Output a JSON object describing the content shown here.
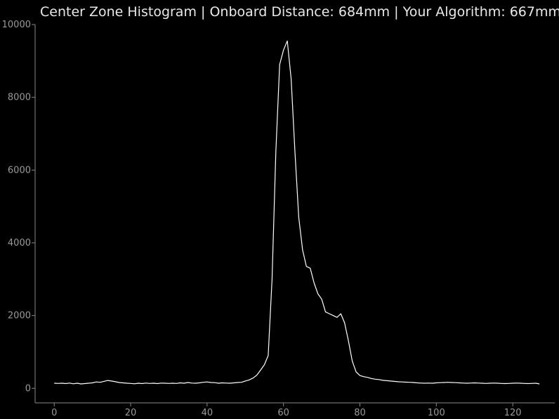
{
  "chart_data": {
    "type": "line",
    "title": "Center Zone Histogram | Onboard Distance: 684mm | Your Algorithm: 667mm",
    "xlabel": "",
    "ylabel": "",
    "xlim": [
      -5,
      131
    ],
    "ylim": [
      -400,
      10000
    ],
    "xticks": [
      0,
      20,
      40,
      60,
      80,
      100,
      120
    ],
    "yticks": [
      0,
      2000,
      4000,
      6000,
      8000,
      10000
    ],
    "grid": false,
    "line_color": "#ffffff",
    "background": "#000000",
    "axis_color": "#8a8a8a",
    "series": [
      {
        "x": [
          0,
          1,
          2,
          3,
          4,
          5,
          6,
          7,
          8,
          9,
          10,
          11,
          12,
          13,
          14,
          15,
          16,
          17,
          18,
          19,
          20,
          21,
          22,
          23,
          24,
          25,
          26,
          27,
          28,
          29,
          30,
          31,
          32,
          33,
          34,
          35,
          36,
          37,
          38,
          39,
          40,
          41,
          42,
          43,
          44,
          45,
          46,
          47,
          48,
          49,
          50,
          51,
          52,
          53,
          54,
          55,
          56,
          57,
          58,
          59,
          60,
          61,
          62,
          63,
          64,
          65,
          66,
          67,
          68,
          69,
          70,
          71,
          72,
          73,
          74,
          75,
          76,
          77,
          78,
          79,
          80,
          81,
          82,
          83,
          84,
          85,
          86,
          87,
          88,
          89,
          90,
          91,
          92,
          93,
          94,
          95,
          96,
          97,
          98,
          99,
          100,
          101,
          102,
          103,
          104,
          105,
          106,
          107,
          108,
          109,
          110,
          111,
          112,
          113,
          114,
          115,
          116,
          117,
          118,
          119,
          120,
          121,
          122,
          123,
          124,
          125,
          126,
          127
        ],
        "values": [
          140,
          135,
          140,
          130,
          145,
          125,
          140,
          120,
          130,
          140,
          150,
          175,
          165,
          190,
          215,
          200,
          180,
          160,
          150,
          140,
          135,
          125,
          140,
          130,
          145,
          135,
          140,
          130,
          145,
          140,
          135,
          140,
          135,
          150,
          140,
          160,
          145,
          140,
          150,
          165,
          175,
          160,
          155,
          140,
          150,
          145,
          140,
          150,
          160,
          165,
          200,
          230,
          280,
          360,
          500,
          650,
          900,
          3000,
          6500,
          8900,
          9300,
          9550,
          8500,
          6500,
          4700,
          3800,
          3350,
          3300,
          2900,
          2600,
          2450,
          2100,
          2050,
          2000,
          1950,
          2050,
          1800,
          1300,
          750,
          450,
          350,
          320,
          300,
          270,
          250,
          240,
          220,
          210,
          200,
          190,
          180,
          175,
          170,
          165,
          160,
          150,
          145,
          140,
          145,
          140,
          150,
          155,
          160,
          165,
          160,
          155,
          150,
          145,
          140,
          145,
          150,
          145,
          140,
          135,
          140,
          145,
          140,
          135,
          130,
          135,
          140,
          145,
          140,
          135,
          130,
          135,
          140,
          120
        ]
      }
    ]
  }
}
